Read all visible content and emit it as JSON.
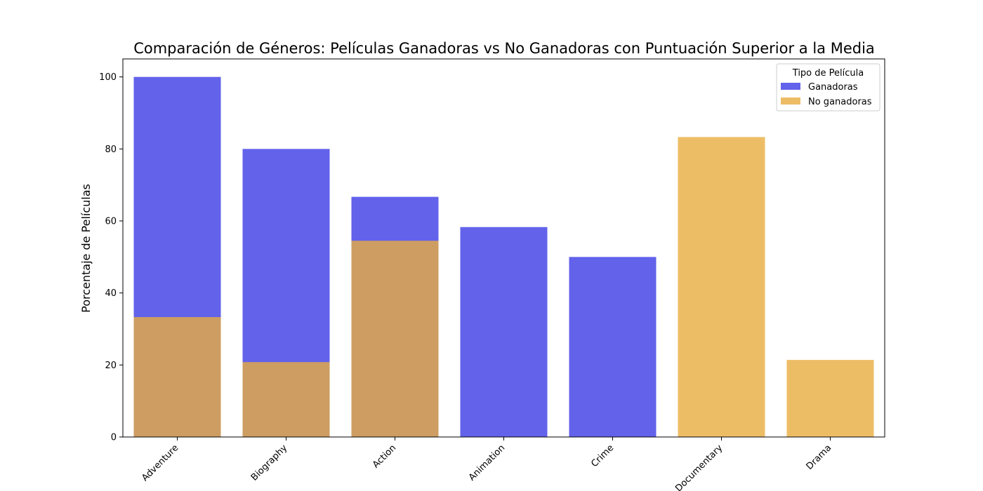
{
  "chart_data": {
    "type": "bar",
    "title": "Comparación de Géneros: Películas Ganadoras vs No Ganadoras con Puntuación Superior a la Media",
    "xlabel": "",
    "ylabel": "Porcentaje de Películas",
    "ylim": [
      0,
      105
    ],
    "yticks": [
      0,
      20,
      40,
      60,
      80,
      100
    ],
    "categories": [
      "Adventure",
      "Biography",
      "Action",
      "Animation",
      "Crime",
      "Documentary",
      "Drama"
    ],
    "series": [
      {
        "name": "Ganadoras",
        "color": "#4b4be8",
        "opacity": 0.87,
        "values": [
          100,
          80,
          66.7,
          58.3,
          50,
          null,
          null
        ]
      },
      {
        "name": "No ganadoras",
        "color": "#e8ac40",
        "opacity": 0.8,
        "values": [
          33.3,
          20.8,
          54.5,
          null,
          null,
          83.3,
          21.4
        ]
      }
    ],
    "legend": {
      "title": "Tipo de Película",
      "placement": "top-right"
    },
    "grid": false,
    "overlay": true
  }
}
